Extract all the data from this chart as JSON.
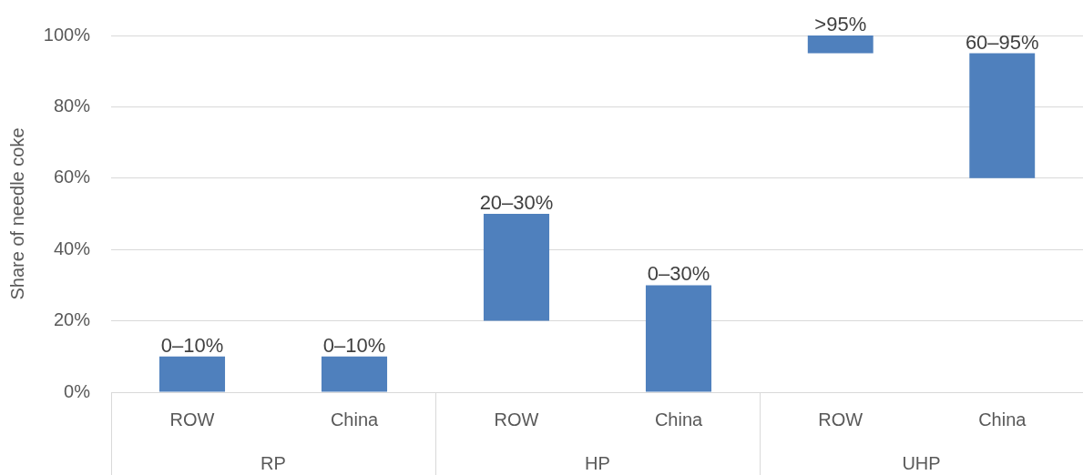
{
  "chart_data": [
    {
      "type": "bar",
      "ylabel": "Share of needle coke",
      "xlabel": "RP",
      "categories": [
        "ROW",
        "China"
      ],
      "base": [
        0,
        0
      ],
      "values": [
        10,
        10
      ],
      "color": "#4f80bd",
      "ylim": [
        0,
        100
      ],
      "yticks": [
        {
          "value": 0,
          "label": "0%"
        },
        {
          "value": 20,
          "label": "20%"
        },
        {
          "value": 40,
          "label": "40%"
        },
        {
          "value": 60,
          "label": "60%"
        },
        {
          "value": 80,
          "label": "80%"
        },
        {
          "value": 100,
          "label": "100%"
        }
      ],
      "grid": "y",
      "annotations": [
        {
          "text": "0–10%",
          "x": "ROW",
          "y": 10
        },
        {
          "text": "0–10%",
          "x": "China",
          "y": 10
        }
      ]
    },
    {
      "type": "bar",
      "xlabel": "HP",
      "categories": [
        "ROW",
        "China"
      ],
      "base": [
        20,
        0
      ],
      "values": [
        30,
        30
      ],
      "color": "#4f80bd",
      "ylim": [
        0,
        100
      ],
      "yticks": [
        0,
        20,
        40,
        60,
        80,
        100
      ],
      "grid": "y",
      "tick_labels": "x",
      "annotations": [
        {
          "text": "20–30%",
          "x": "ROW",
          "y": 50
        },
        {
          "text": "0–30%",
          "x": "China",
          "y": 30
        }
      ]
    },
    {
      "type": "bar",
      "xlabel": "UHP",
      "categories": [
        "ROW",
        "China"
      ],
      "base": [
        95,
        60
      ],
      "values": [
        5,
        35
      ],
      "color": "#4f80bd",
      "ylim": [
        0,
        100
      ],
      "yticks": [
        0,
        20,
        40,
        60,
        80,
        100
      ],
      "grid": "y",
      "tick_labels": "x",
      "annotations": [
        {
          "text": ">95%",
          "x": "ROW",
          "y": 100
        },
        {
          "text": "60–95%",
          "x": "China",
          "y": 95
        }
      ]
    }
  ]
}
